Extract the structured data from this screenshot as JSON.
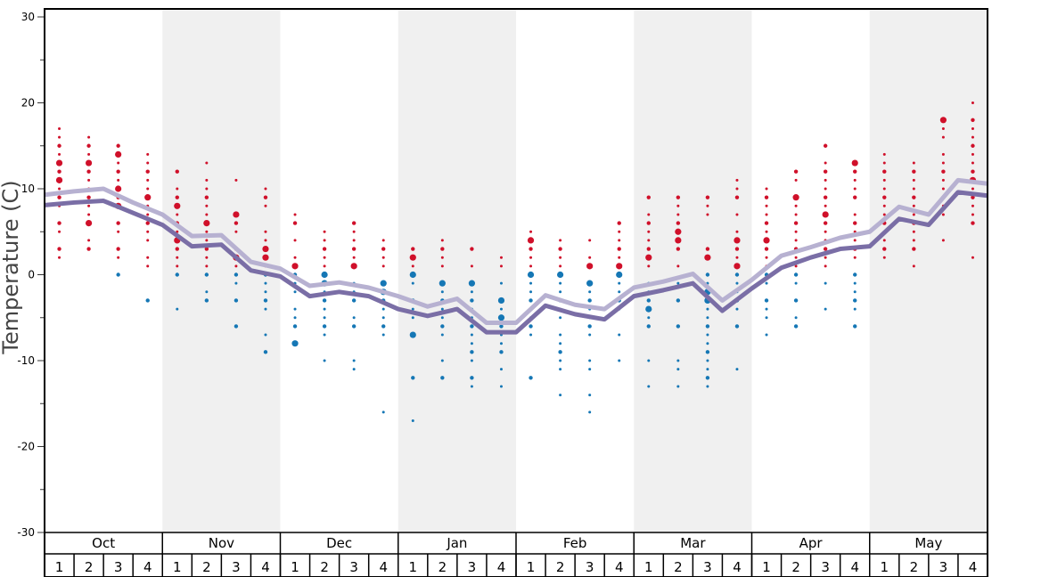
{
  "chart_data": {
    "type": "scatter",
    "ylabel": "Temperature (C)",
    "ylim": [
      -30,
      30
    ],
    "yticks": [
      "30",
      "20",
      "10",
      "0",
      "-10",
      "-20",
      "-30"
    ],
    "months": [
      "Oct",
      "Nov",
      "Dec",
      "Jan",
      "Feb",
      "Mar",
      "Apr",
      "May"
    ],
    "weeks": [
      "1",
      "2",
      "3",
      "4"
    ],
    "shaded_months": [
      "Nov",
      "Jan",
      "Mar",
      "May"
    ],
    "colors": {
      "warm": "#d0102a",
      "cold": "#1577b5",
      "line_light": "#b7b1d1",
      "line_dark": "#7a6ea6",
      "shade": "#f0f0f0"
    },
    "series": [
      {
        "name": "light-line",
        "values": [
          9.3,
          9.7,
          10.0,
          8.4,
          7.0,
          4.5,
          4.6,
          1.5,
          0.7,
          -1.3,
          -0.9,
          -1.5,
          -2.5,
          -3.7,
          -2.8,
          -5.6,
          -5.6,
          -2.4,
          -3.5,
          -4.0,
          -1.5,
          -0.8,
          0.1,
          -3.0,
          -0.6,
          2.2,
          3.2,
          4.3,
          5.0,
          7.9,
          7.0,
          11.0,
          10.6
        ]
      },
      {
        "name": "dark-line",
        "values": [
          8.1,
          8.4,
          8.6,
          7.2,
          5.8,
          3.3,
          3.5,
          0.5,
          -0.2,
          -2.5,
          -2.0,
          -2.5,
          -4.0,
          -4.8,
          -4.0,
          -6.7,
          -6.7,
          -3.6,
          -4.6,
          -5.2,
          -2.5,
          -1.8,
          -1.0,
          -4.2,
          -1.6,
          0.8,
          2.0,
          3.0,
          3.3,
          6.5,
          5.8,
          9.6,
          9.2
        ]
      }
    ],
    "points": [
      {
        "t": [
          17,
          16,
          15,
          14,
          13,
          12,
          11,
          10,
          9,
          8,
          6,
          5,
          3,
          2
        ],
        "big": [
          13,
          11
        ]
      },
      {
        "t": [
          16,
          15,
          14,
          13,
          12,
          11,
          10,
          9,
          8,
          7,
          6,
          4,
          3
        ],
        "big": [
          13,
          6
        ]
      },
      {
        "t": [
          15,
          14,
          13,
          12,
          11,
          10,
          9,
          8,
          6,
          5,
          3,
          2,
          0
        ],
        "big": [
          14,
          10,
          8
        ]
      },
      {
        "t": [
          14,
          13,
          12,
          11,
          10,
          9,
          8,
          7,
          6,
          5,
          4,
          2,
          1,
          -3
        ],
        "big": [
          9
        ]
      },
      {
        "t": [
          12,
          10,
          9,
          8,
          7,
          6,
          5,
          4,
          3,
          2,
          1,
          0,
          -4
        ],
        "big": [
          8,
          4
        ]
      },
      {
        "t": [
          13,
          11,
          10,
          9,
          8,
          7,
          6,
          5,
          4,
          3,
          2,
          1,
          0,
          -2,
          -3
        ],
        "big": [
          6
        ]
      },
      {
        "t": [
          11,
          7,
          6,
          5,
          3,
          2,
          1,
          0,
          -1,
          -3,
          -6
        ],
        "big": [
          7,
          2
        ]
      },
      {
        "t": [
          10,
          9,
          8,
          5,
          4,
          3,
          2,
          1,
          0,
          -1,
          -2,
          -3,
          -4,
          -7,
          -9
        ],
        "big": [
          2,
          3
        ]
      },
      {
        "t": [
          7,
          6,
          4,
          2,
          1,
          0,
          -1,
          -2,
          -4,
          -5,
          -6,
          -8
        ],
        "big": [
          1,
          -8
        ]
      },
      {
        "t": [
          5,
          4,
          3,
          2,
          1,
          0,
          -1,
          -2,
          -3,
          -4,
          -5,
          -6,
          -7,
          -10
        ],
        "big": [
          0,
          -1
        ]
      },
      {
        "t": [
          6,
          5,
          4,
          3,
          2,
          1,
          -1,
          -2,
          -3,
          -5,
          -6,
          -10,
          -11
        ],
        "big": [
          1
        ]
      },
      {
        "t": [
          4,
          3,
          2,
          1,
          -1,
          -2,
          -3,
          -4,
          -5,
          -6,
          -7,
          -16
        ],
        "big": [
          -2,
          -1
        ]
      },
      {
        "t": [
          3,
          2,
          1,
          0,
          -1,
          -3,
          -4,
          -5,
          -7,
          -12,
          -17
        ],
        "big": [
          0,
          -7,
          2
        ]
      },
      {
        "t": [
          4,
          3,
          2,
          1,
          -1,
          -2,
          -3,
          -4,
          -5,
          -6,
          -7,
          -10,
          -12
        ],
        "big": [
          -1
        ]
      },
      {
        "t": [
          3,
          1,
          -1,
          -2,
          -3,
          -4,
          -5,
          -6,
          -7,
          -8,
          -9,
          -10,
          -12,
          -13
        ],
        "big": [
          -1
        ]
      },
      {
        "t": [
          2,
          1,
          -1,
          -3,
          -4,
          -5,
          -6,
          -7,
          -8,
          -9,
          -11,
          -13
        ],
        "big": [
          -5,
          -3
        ]
      },
      {
        "t": [
          5,
          4,
          3,
          2,
          1,
          0,
          -1,
          -2,
          -3,
          -4,
          -5,
          -6,
          -7,
          -12
        ],
        "big": [
          4,
          0
        ]
      },
      {
        "t": [
          4,
          3,
          2,
          1,
          0,
          -1,
          -2,
          -3,
          -4,
          -5,
          -7,
          -8,
          -9,
          -10,
          -11,
          -14
        ],
        "big": [
          0
        ]
      },
      {
        "t": [
          4,
          2,
          1,
          -1,
          -2,
          -3,
          -4,
          -5,
          -6,
          -7,
          -10,
          -11,
          -14,
          -16
        ],
        "big": [
          1,
          -1
        ]
      },
      {
        "t": [
          6,
          5,
          4,
          3,
          2,
          1,
          0,
          -1,
          -2,
          -3,
          -4,
          -7,
          -10
        ],
        "big": [
          1,
          0
        ]
      },
      {
        "t": [
          9,
          7,
          6,
          5,
          4,
          3,
          2,
          1,
          -1,
          -2,
          -3,
          -4,
          -5,
          -6,
          -10,
          -13
        ],
        "big": [
          2,
          -4
        ]
      },
      {
        "t": [
          9,
          8,
          7,
          6,
          5,
          4,
          3,
          1,
          -1,
          -3,
          -6,
          -10,
          -11,
          -13
        ],
        "big": [
          5,
          4
        ]
      },
      {
        "t": [
          9,
          8,
          7,
          3,
          2,
          0,
          -1,
          -2,
          -3,
          -4,
          -5,
          -6,
          -7,
          -8,
          -9,
          -10,
          -11,
          -12,
          -13
        ],
        "big": [
          2,
          -2,
          -3
        ]
      },
      {
        "t": [
          11,
          10,
          9,
          7,
          5,
          4,
          3,
          2,
          1,
          0,
          -1,
          -2,
          -3,
          -4,
          -6,
          -11
        ],
        "big": [
          4,
          1
        ]
      },
      {
        "t": [
          10,
          9,
          8,
          7,
          6,
          5,
          4,
          3,
          2,
          1,
          0,
          -1,
          -3,
          -4,
          -5,
          -7
        ],
        "big": [
          4
        ]
      },
      {
        "t": [
          12,
          11,
          9,
          8,
          7,
          6,
          5,
          4,
          3,
          2,
          1,
          0,
          -1,
          -3,
          -5,
          -6
        ],
        "big": [
          9
        ]
      },
      {
        "t": [
          15,
          13,
          12,
          11,
          10,
          9,
          8,
          7,
          6,
          5,
          4,
          3,
          2,
          1,
          -1,
          -4
        ],
        "big": [
          7
        ]
      },
      {
        "t": [
          13,
          12,
          11,
          10,
          9,
          7,
          6,
          5,
          4,
          3,
          2,
          0,
          -1,
          -2,
          -3,
          -4,
          -6
        ],
        "big": [
          13
        ]
      },
      {
        "t": [
          14,
          13,
          12,
          11,
          10,
          9,
          8,
          7,
          6,
          5,
          4,
          3,
          2
        ],
        "big": []
      },
      {
        "t": [
          13,
          12,
          11,
          10,
          9,
          8,
          7,
          6,
          5,
          4,
          3,
          1
        ],
        "big": []
      },
      {
        "t": [
          18,
          17,
          16,
          14,
          13,
          12,
          11,
          10,
          9,
          8,
          7,
          4
        ],
        "big": [
          18
        ]
      },
      {
        "t": [
          20,
          18,
          17,
          16,
          15,
          14,
          13,
          12,
          11,
          10,
          9,
          8,
          7,
          6,
          2
        ],
        "big": [
          11
        ]
      }
    ]
  }
}
